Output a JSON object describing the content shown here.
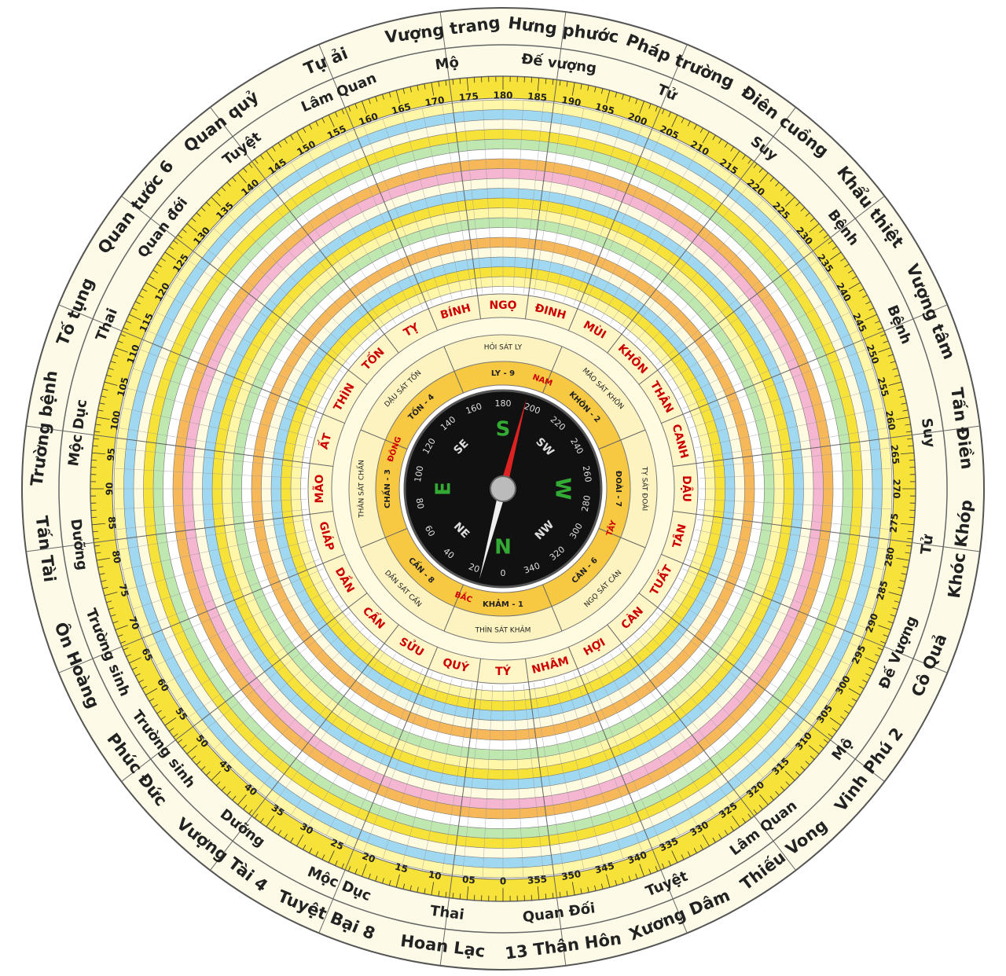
{
  "outer_ring": [
    "Vượng trang",
    "Hưng phước",
    "Pháp trường",
    "Điên cuồng",
    "Khẩu thiệt",
    "Vượng tâm",
    "Tấn Điền",
    "Khóc Khóp",
    "Cô Quả",
    "Vinh Phú 2",
    "Thiếu Vong",
    "Xương Dâm",
    "13 Thân Hôn",
    "Hoan Lạc",
    "Tuyệt Bại 8",
    "Vượng Tài 4",
    "Phúc Đức",
    "Ôn Hoàng",
    "Tấn Tài",
    "Trường bệnh",
    "Tố tụng",
    "Quan tước 6",
    "Quan quỷ",
    "Tự ải"
  ],
  "inner_ring": [
    "Mộ",
    "Đế vượng",
    "Tử",
    "Suy",
    "Bệnh",
    "Bệnh",
    "Suy",
    "Tử",
    "Đế Vượng",
    "Mộ",
    "Lâm Quan",
    "Tuyệt",
    "Quan Đối",
    "Thai",
    "Mộc Dục",
    "Dưỡng",
    "Trường sinh",
    "Trường sinh",
    "Dưỡng",
    "Mộc Dục",
    "Thai",
    "Quan đới",
    "Tuyệt",
    "Lâm Quan"
  ],
  "degrees": [
    "0",
    "05",
    "10",
    "15",
    "20",
    "25",
    "30",
    "35",
    "40",
    "45",
    "50",
    "55",
    "60",
    "65",
    "70",
    "75",
    "80",
    "85",
    "90",
    "95",
    "100",
    "105",
    "110",
    "115",
    "120",
    "125",
    "130",
    "135",
    "140",
    "145",
    "150",
    "155",
    "160",
    "165",
    "170",
    "175",
    "180",
    "185",
    "190",
    "195",
    "200",
    "205",
    "210",
    "215",
    "220",
    "225",
    "230",
    "235",
    "240",
    "245",
    "250",
    "255",
    "260",
    "265",
    "270",
    "275",
    "280",
    "285",
    "290",
    "295",
    "300",
    "305",
    "310",
    "315",
    "320",
    "325",
    "330",
    "335",
    "340",
    "345",
    "350",
    "355"
  ],
  "mountains": [
    "TÝ",
    "QUÝ",
    "SỬU",
    "CẤN",
    "DẦN",
    "GIÁP",
    "MÃO",
    "ẤT",
    "THÌN",
    "TỐN",
    "TỴ",
    "BÍNH",
    "NGỌ",
    "ĐINH",
    "MÙI",
    "KHÔN",
    "THÂN",
    "CANH",
    "DẬU",
    "TÂN",
    "TUẤT",
    "CÀN",
    "HỢI",
    "NHÂM"
  ],
  "sat_ring": [
    "HỎI SÁT LY",
    "MÃO SÁT KHÔN",
    "TỴ SÁT ĐOÀI",
    "NGỌ SÁT CÀN",
    "THÌN SÁT KHẢM",
    "DẦN SÁT CẤN",
    "THÂN SÁT CHẤN",
    "DẬU SÁT TỐN"
  ],
  "trigrams": [
    "LY - 9",
    "KHÔN - 2",
    "ĐOÀI - 7",
    "CÀN - 6",
    "KHẢM - 1",
    "CẤN - 8",
    "CHẤN - 3",
    "TỐN - 4"
  ],
  "directions": [
    "NAM",
    "TÂY",
    "BẮC",
    "ĐÔNG"
  ],
  "compass_points": [
    "S",
    "SW",
    "W",
    "NW",
    "N",
    "NE",
    "E",
    "SE"
  ],
  "face_degrees": [
    "0",
    "20",
    "40",
    "60",
    "80",
    "100",
    "120",
    "140",
    "160",
    "180",
    "200",
    "220",
    "240",
    "260",
    "280",
    "300",
    "320",
    "340"
  ]
}
